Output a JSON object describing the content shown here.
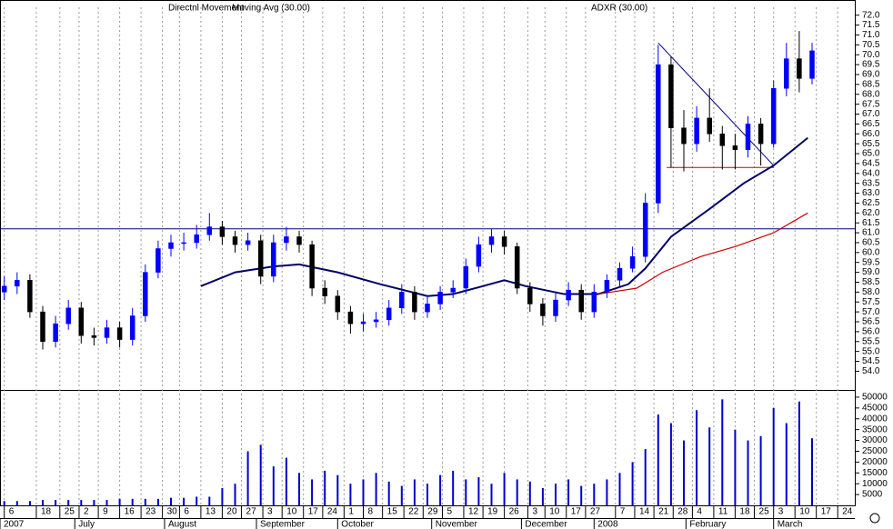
{
  "chart_data": {
    "type": "candlestick",
    "header": [
      "Directnl Movement",
      "Moving Avg (30.00)",
      "ADXR (30.00)"
    ],
    "x": [
      1,
      4,
      7,
      10,
      13,
      16,
      19,
      22,
      25,
      28,
      31,
      34,
      37,
      40,
      43,
      46,
      49,
      52,
      55,
      58,
      61,
      64,
      67,
      70,
      73,
      76,
      79,
      82,
      85,
      88,
      91,
      94,
      97,
      100,
      103,
      106,
      109,
      112,
      115,
      118,
      121,
      124,
      127,
      130,
      133,
      136,
      139,
      142,
      145,
      148,
      151,
      154,
      157,
      160,
      163,
      166,
      169,
      172,
      175,
      178,
      181,
      184,
      187,
      190
    ],
    "open": [
      58.0,
      58.3,
      58.6,
      57.0,
      55.5,
      56.4,
      57.2,
      55.8,
      55.7,
      56.2,
      55.6,
      56.8,
      59.0,
      60.2,
      60.5,
      60.5,
      60.9,
      61.3,
      60.8,
      60.4,
      60.6,
      58.8,
      60.5,
      60.8,
      60.4,
      58.2,
      57.8,
      57.0,
      56.4,
      56.5,
      56.6,
      57.2,
      58.0,
      57.0,
      57.4,
      58.0,
      58.2,
      59.3,
      60.4,
      60.8,
      60.3,
      58.2,
      57.4,
      56.8,
      57.6,
      58.1,
      57.0,
      58.0,
      58.6,
      59.2,
      59.8,
      62.5,
      69.5,
      66.3,
      65.5,
      66.8,
      66.0,
      65.4,
      65.2,
      66.5,
      65.5,
      68.3,
      69.8,
      68.8
    ],
    "high": [
      58.8,
      59.0,
      58.9,
      57.3,
      56.8,
      57.6,
      57.5,
      56.2,
      56.6,
      56.5,
      57.2,
      59.4,
      60.6,
      60.9,
      61.0,
      61.4,
      62.0,
      61.6,
      61.1,
      61.0,
      60.9,
      60.9,
      61.3,
      61.1,
      60.6,
      58.6,
      58.1,
      57.3,
      56.9,
      57.0,
      57.6,
      58.4,
      58.3,
      57.8,
      58.3,
      58.6,
      59.7,
      60.8,
      61.2,
      61.1,
      60.5,
      58.5,
      57.7,
      58.0,
      58.5,
      58.4,
      58.4,
      58.9,
      59.5,
      60.3,
      63.0,
      70.5,
      69.9,
      67.2,
      67.4,
      68.3,
      66.4,
      66.0,
      66.9,
      66.8,
      68.7,
      70.6,
      71.2,
      70.6
    ],
    "low": [
      57.6,
      57.9,
      56.7,
      55.1,
      55.2,
      56.1,
      55.4,
      55.3,
      55.4,
      55.2,
      55.3,
      56.5,
      58.7,
      59.8,
      60.1,
      60.2,
      60.6,
      60.4,
      60.0,
      60.1,
      58.4,
      58.5,
      60.1,
      60.0,
      57.8,
      57.4,
      56.6,
      55.9,
      56.0,
      56.2,
      56.3,
      56.9,
      56.6,
      56.7,
      57.1,
      57.7,
      57.9,
      59.0,
      60.0,
      59.9,
      57.9,
      57.0,
      56.3,
      56.5,
      57.3,
      56.6,
      56.7,
      57.7,
      58.3,
      59.0,
      59.5,
      62.0,
      64.3,
      64.1,
      65.1,
      65.6,
      64.2,
      64.2,
      64.8,
      64.4,
      65.3,
      67.9,
      68.1,
      68.5
    ],
    "close": [
      58.3,
      58.6,
      57.0,
      55.5,
      56.4,
      57.2,
      55.8,
      55.7,
      56.2,
      55.6,
      56.8,
      59.0,
      60.2,
      60.5,
      60.5,
      60.9,
      61.3,
      60.8,
      60.4,
      60.6,
      58.8,
      60.5,
      60.8,
      60.4,
      58.2,
      57.8,
      57.0,
      56.4,
      56.5,
      56.6,
      57.2,
      58.0,
      57.0,
      57.4,
      58.0,
      58.2,
      59.3,
      60.4,
      60.8,
      60.3,
      58.2,
      57.4,
      56.8,
      57.6,
      58.1,
      57.0,
      58.0,
      58.6,
      59.2,
      59.8,
      62.5,
      69.5,
      66.3,
      65.5,
      66.8,
      66.0,
      65.4,
      65.2,
      66.5,
      65.5,
      68.3,
      69.8,
      68.8,
      70.2
    ],
    "volume": [
      2000,
      2000,
      2000,
      2500,
      2500,
      2500,
      2500,
      2500,
      2500,
      3000,
      3000,
      3000,
      3000,
      3500,
      3500,
      4000,
      4000,
      8000,
      10000,
      25000,
      28000,
      18000,
      22000,
      15000,
      12000,
      16000,
      14000,
      10000,
      12000,
      15000,
      11000,
      9000,
      12000,
      10000,
      14000,
      16000,
      12000,
      13000,
      10000,
      15000,
      12000,
      11000,
      8000,
      10000,
      12000,
      9000,
      10000,
      12000,
      15000,
      20000,
      26000,
      42000,
      38000,
      30000,
      44000,
      36000,
      49000,
      35000,
      30000,
      32000,
      45000,
      38000,
      48000,
      31000
    ],
    "up_color": "#0000ff",
    "down_color": "#000000",
    "volume_color": "#0000cc",
    "averages": [
      {
        "color": "#000066",
        "x": [
          47,
          55,
          64,
          70,
          79,
          89,
          100,
          106,
          113,
          118,
          123,
          132,
          140,
          147,
          151,
          157,
          166,
          174,
          181,
          189
        ],
        "values": [
          58.3,
          59.0,
          59.3,
          59.4,
          59.0,
          58.4,
          57.8,
          57.9,
          58.3,
          58.6,
          58.3,
          57.9,
          57.9,
          58.4,
          59.2,
          60.8,
          62.2,
          63.5,
          64.4,
          65.8
        ]
      },
      {
        "color": "#cc0000",
        "x": [
          140,
          149,
          155,
          164,
          172,
          181,
          189
        ],
        "values": [
          57.9,
          58.2,
          59.0,
          59.8,
          60.3,
          61.0,
          62.0
        ]
      }
    ],
    "hline": 61.2,
    "support": {
      "x": [
        156,
        181
      ],
      "values": [
        64.3,
        64.3
      ]
    },
    "trend": {
      "x": [
        154,
        181
      ],
      "values": [
        70.6,
        64.4
      ]
    },
    "xlim": [
      0,
      200
    ],
    "ylim": [
      53.1,
      72.4
    ],
    "vlim": [
      0,
      52500
    ],
    "xticks": [
      {
        "value": 1,
        "label": "6"
      },
      {
        "value": 8.5,
        "label": "18"
      },
      {
        "value": 14,
        "label": "25"
      },
      {
        "value": 18.5,
        "label": "2"
      },
      {
        "value": 23,
        "label": "9"
      },
      {
        "value": 28,
        "label": "16"
      },
      {
        "value": 33,
        "label": "23"
      },
      {
        "value": 38,
        "label": "30"
      },
      {
        "value": 42,
        "label": "6"
      },
      {
        "value": 47,
        "label": "13"
      },
      {
        "value": 52,
        "label": "20"
      },
      {
        "value": 56.5,
        "label": "27"
      },
      {
        "value": 61.5,
        "label": "3"
      },
      {
        "value": 66,
        "label": "10"
      },
      {
        "value": 71,
        "label": "17"
      },
      {
        "value": 75.5,
        "label": "24"
      },
      {
        "value": 80.5,
        "label": "1"
      },
      {
        "value": 85,
        "label": "8"
      },
      {
        "value": 89.5,
        "label": "15"
      },
      {
        "value": 94.5,
        "label": "22"
      },
      {
        "value": 99,
        "label": "29"
      },
      {
        "value": 103.5,
        "label": "5"
      },
      {
        "value": 108.5,
        "label": "12"
      },
      {
        "value": 113,
        "label": "19"
      },
      {
        "value": 118,
        "label": "26"
      },
      {
        "value": 123.5,
        "label": "3"
      },
      {
        "value": 127.5,
        "label": "10"
      },
      {
        "value": 132.5,
        "label": "17"
      },
      {
        "value": 137,
        "label": "27"
      },
      {
        "value": 144,
        "label": "7"
      },
      {
        "value": 148.5,
        "label": "14"
      },
      {
        "value": 153,
        "label": "21"
      },
      {
        "value": 157.5,
        "label": "28"
      },
      {
        "value": 162,
        "label": "4"
      },
      {
        "value": 167,
        "label": "11"
      },
      {
        "value": 172,
        "label": "18"
      },
      {
        "value": 176.5,
        "label": "25"
      },
      {
        "value": 181,
        "label": "3"
      },
      {
        "value": 186,
        "label": "10"
      },
      {
        "value": 191,
        "label": "17"
      },
      {
        "value": 196,
        "label": "24"
      }
    ],
    "months": [
      {
        "value": 0,
        "label": "2007"
      },
      {
        "value": 17.5,
        "label": "July"
      },
      {
        "value": 38.5,
        "label": "August"
      },
      {
        "value": 60,
        "label": "September"
      },
      {
        "value": 79,
        "label": "October"
      },
      {
        "value": 101,
        "label": "November"
      },
      {
        "value": 122,
        "label": "December"
      },
      {
        "value": 139,
        "label": "2008"
      },
      {
        "value": 160.5,
        "label": "February"
      },
      {
        "value": 181,
        "label": "March"
      }
    ],
    "yticks": [
      {
        "value": 72,
        "label": "72.0"
      },
      {
        "value": 71.5,
        "label": "71.5"
      },
      {
        "value": 71,
        "label": "71.0"
      },
      {
        "value": 70.5,
        "label": "70.5"
      },
      {
        "value": 70,
        "label": "70.0"
      },
      {
        "value": 69.5,
        "label": "69.5"
      },
      {
        "value": 69,
        "label": "69.0"
      },
      {
        "value": 68.5,
        "label": "68.5"
      },
      {
        "value": 68,
        "label": "68.0"
      },
      {
        "value": 67.5,
        "label": "67.5"
      },
      {
        "value": 67,
        "label": "67.0"
      },
      {
        "value": 66.5,
        "label": "66.5"
      },
      {
        "value": 66,
        "label": "66.0"
      },
      {
        "value": 65.5,
        "label": "65.5"
      },
      {
        "value": 65,
        "label": "65.0"
      },
      {
        "value": 64.5,
        "label": "64.5"
      },
      {
        "value": 64,
        "label": "64.0"
      },
      {
        "value": 63.5,
        "label": "63.5"
      },
      {
        "value": 63,
        "label": "63.0"
      },
      {
        "value": 62.5,
        "label": "62.5"
      },
      {
        "value": 62,
        "label": "62.0"
      },
      {
        "value": 61.5,
        "label": "61.5"
      },
      {
        "value": 61,
        "label": "61.0"
      },
      {
        "value": 60.5,
        "label": "60.5"
      },
      {
        "value": 60,
        "label": "60.0"
      },
      {
        "value": 59.5,
        "label": "59.5"
      },
      {
        "value": 59,
        "label": "59.0"
      },
      {
        "value": 58.5,
        "label": "58.5"
      },
      {
        "value": 58,
        "label": "58.0"
      },
      {
        "value": 57.5,
        "label": "57.5"
      },
      {
        "value": 57,
        "label": "57.0"
      },
      {
        "value": 56.5,
        "label": "56.5"
      },
      {
        "value": 56,
        "label": "56.0"
      },
      {
        "value": 55.5,
        "label": "55.5"
      },
      {
        "value": 55,
        "label": "55.0"
      },
      {
        "value": 54.5,
        "label": "54.5"
      },
      {
        "value": 54,
        "label": "54.0"
      }
    ],
    "vticks": [
      5000,
      10000,
      15000,
      20000,
      25000,
      30000,
      35000,
      40000,
      45000,
      50000
    ],
    "grid": true
  }
}
